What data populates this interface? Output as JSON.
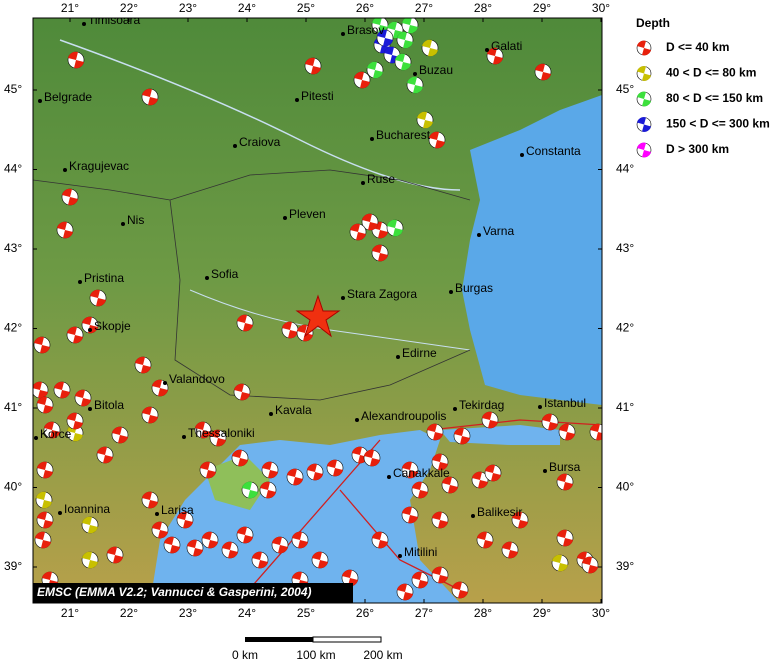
{
  "map": {
    "lon_ticks": [
      {
        "value": 21,
        "label": "21°"
      },
      {
        "value": 22,
        "label": "22°"
      },
      {
        "value": 23,
        "label": "23°"
      },
      {
        "value": 24,
        "label": "24°"
      },
      {
        "value": 25,
        "label": "25°"
      },
      {
        "value": 26,
        "label": "26°"
      },
      {
        "value": 27,
        "label": "27°"
      },
      {
        "value": 28,
        "label": "28°"
      },
      {
        "value": 29,
        "label": "29°"
      },
      {
        "value": 30,
        "label": "30°"
      }
    ],
    "lat_ticks": [
      {
        "value": 45,
        "label": "45°"
      },
      {
        "value": 44,
        "label": "44°"
      },
      {
        "value": 43,
        "label": "43°"
      },
      {
        "value": 42,
        "label": "42°"
      },
      {
        "value": 41,
        "label": "41°"
      },
      {
        "value": 40,
        "label": "40°"
      },
      {
        "value": 39,
        "label": "39°"
      }
    ],
    "cities": [
      "Timisoara",
      "Brasov",
      "Galati",
      "Belgrade",
      "Pitesti",
      "Buzau",
      "Craiova",
      "Bucharest",
      "Constanta",
      "Kragujevac",
      "Ruse",
      "Nis",
      "Pleven",
      "Varna",
      "Pristina",
      "Sofia",
      "Stara Zagora",
      "Burgas",
      "Skopje",
      "Edirne",
      "Valandovo",
      "Bitola",
      "Kavala",
      "Alexandroupolis",
      "Tekirdag",
      "Istanbul",
      "Korce",
      "Thessaloniki",
      "Canakkale",
      "Bursa",
      "Ioannina",
      "Larisa",
      "Balikesir",
      "Mitilini"
    ],
    "credit": "EMSC (EMMA V2.2; Vannucci & Gasperini, 2004)",
    "scale_labels": [
      "0 km",
      "100 km",
      "200 km"
    ]
  },
  "legend": {
    "title": "Depth",
    "entries": [
      "D <= 40 km",
      "40 < D <= 80 km",
      "80 < D <= 150 km",
      "150 < D <= 300 km",
      "D > 300 km"
    ]
  }
}
